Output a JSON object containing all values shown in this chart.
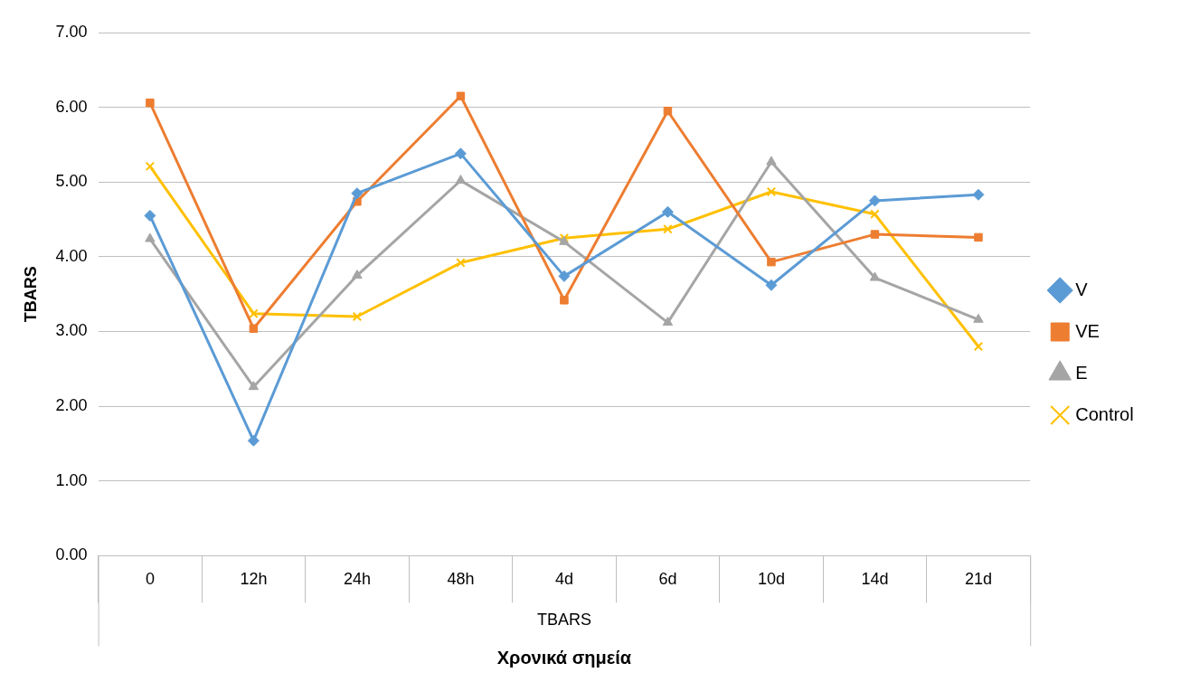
{
  "chart_data": {
    "type": "line",
    "xlabel": "Χρονικά σημεία",
    "ylabel": "TBARS",
    "categories": [
      "0",
      "12h",
      "24h",
      "48h",
      "4d",
      "6d",
      "10d",
      "14d",
      "21d"
    ],
    "series": [
      {
        "name": "V",
        "color": "#5b9bd5",
        "marker": "diamond",
        "values": [
          4.55,
          1.54,
          4.85,
          5.38,
          3.74,
          4.6,
          3.62,
          4.75,
          4.83
        ]
      },
      {
        "name": "VE",
        "color": "#ed7d31",
        "marker": "square",
        "values": [
          6.06,
          3.04,
          4.74,
          6.15,
          3.42,
          5.95,
          3.93,
          4.3,
          4.26
        ]
      },
      {
        "name": "E",
        "color": "#a5a5a5",
        "marker": "triangle",
        "values": [
          4.24,
          2.26,
          3.75,
          5.02,
          4.2,
          3.12,
          5.27,
          3.72,
          3.16
        ]
      },
      {
        "name": "Control",
        "color": "#ffc000",
        "marker": "cross",
        "values": [
          5.21,
          3.24,
          3.2,
          3.92,
          4.25,
          4.37,
          4.87,
          4.57,
          2.8
        ]
      }
    ],
    "ylim": [
      0,
      7
    ],
    "yticks": [
      {
        "value": 0,
        "label": "0.00"
      },
      {
        "value": 1,
        "label": "1.00"
      },
      {
        "value": 2,
        "label": "2.00"
      },
      {
        "value": 3,
        "label": "3.00"
      },
      {
        "value": 4,
        "label": "4.00"
      },
      {
        "value": 5,
        "label": "5.00"
      },
      {
        "value": 6,
        "label": "6.00"
      },
      {
        "value": 7,
        "label": "7.00"
      }
    ],
    "annotations": [
      "TBARS"
    ],
    "grid": "y",
    "legend": "right",
    "line_style": "solid"
  }
}
